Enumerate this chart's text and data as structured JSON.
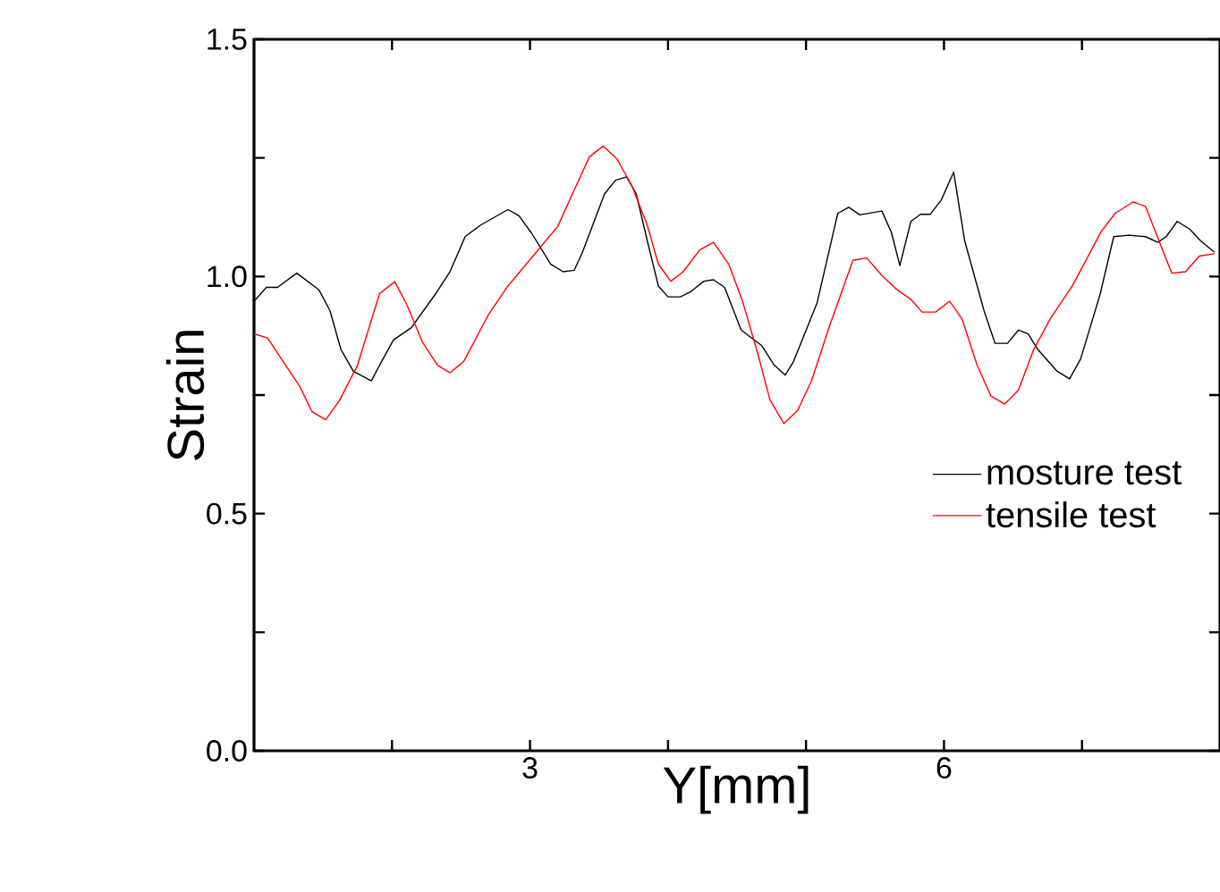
{
  "chart_data": {
    "type": "line",
    "xlabel": "Y[mm]",
    "ylabel": "Strain",
    "xlim": [
      1,
      8
    ],
    "ylim": [
      0,
      1.5
    ],
    "xticks": [
      {
        "value": 2,
        "label": null
      },
      3,
      {
        "value": 4,
        "label": null
      },
      {
        "value": 5,
        "label": null
      },
      6,
      {
        "value": 7,
        "label": null
      }
    ],
    "yticks": [
      {
        "value": 0,
        "label": "0.0"
      },
      {
        "value": 0.25,
        "label": null
      },
      0.5,
      {
        "value": 0.75,
        "label": null
      },
      {
        "value": 1,
        "label": "1.0"
      },
      {
        "value": 1.25,
        "label": null
      },
      1.5
    ],
    "legend": "right",
    "series": [
      {
        "name": "mosture test",
        "color": "#000000",
        "x": [
          1.0,
          1.09,
          1.17,
          1.31,
          1.47,
          1.55,
          1.63,
          1.72,
          1.85,
          1.91,
          2.01,
          2.14,
          2.31,
          2.42,
          2.53,
          2.64,
          2.84,
          2.92,
          3.01,
          3.15,
          3.24,
          3.32,
          3.38,
          3.54,
          3.62,
          3.7,
          3.77,
          3.85,
          3.93,
          4.0,
          4.09,
          4.17,
          4.26,
          4.33,
          4.41,
          4.53,
          4.68,
          4.77,
          4.85,
          4.91,
          5.08,
          5.23,
          5.31,
          5.39,
          5.55,
          5.62,
          5.68,
          5.76,
          5.83,
          5.9,
          5.98,
          6.07,
          6.15,
          6.29,
          6.37,
          6.46,
          6.54,
          6.61,
          6.68,
          6.82,
          6.91,
          6.99,
          7.13,
          7.23,
          7.34,
          7.46,
          7.55,
          7.61,
          7.69,
          7.78,
          7.86,
          7.96
        ],
        "values": [
          0.948,
          0.977,
          0.977,
          1.007,
          0.972,
          0.928,
          0.846,
          0.8,
          0.78,
          0.813,
          0.866,
          0.892,
          0.961,
          1.01,
          1.084,
          1.108,
          1.141,
          1.128,
          1.092,
          1.026,
          1.01,
          1.013,
          1.051,
          1.174,
          1.203,
          1.21,
          1.174,
          1.075,
          0.98,
          0.957,
          0.957,
          0.969,
          0.99,
          0.993,
          0.977,
          0.887,
          0.854,
          0.813,
          0.792,
          0.821,
          0.944,
          1.133,
          1.146,
          1.13,
          1.138,
          1.092,
          1.023,
          1.116,
          1.131,
          1.131,
          1.161,
          1.22,
          1.075,
          0.928,
          0.859,
          0.859,
          0.887,
          0.879,
          0.846,
          0.8,
          0.784,
          0.826,
          0.961,
          1.084,
          1.087,
          1.084,
          1.072,
          1.084,
          1.116,
          1.1,
          1.075,
          1.051
        ]
      },
      {
        "name": "tensile test",
        "color": "#ff0000",
        "x": [
          1.0,
          1.1,
          1.21,
          1.33,
          1.42,
          1.52,
          1.62,
          1.75,
          1.91,
          2.02,
          2.11,
          2.22,
          2.33,
          2.42,
          2.52,
          2.7,
          2.84,
          3.2,
          3.32,
          3.43,
          3.53,
          3.63,
          3.74,
          3.85,
          3.93,
          4.02,
          4.11,
          4.23,
          4.33,
          4.44,
          4.54,
          4.65,
          4.74,
          4.84,
          4.94,
          5.04,
          5.17,
          5.34,
          5.44,
          5.55,
          5.66,
          5.76,
          5.84,
          5.94,
          6.04,
          6.13,
          6.24,
          6.34,
          6.44,
          6.54,
          6.65,
          6.77,
          6.93,
          7.14,
          7.24,
          7.37,
          7.46,
          7.65,
          7.75,
          7.85,
          7.96
        ],
        "values": [
          0.879,
          0.87,
          0.821,
          0.769,
          0.715,
          0.698,
          0.739,
          0.813,
          0.964,
          0.989,
          0.939,
          0.862,
          0.813,
          0.797,
          0.821,
          0.92,
          0.98,
          1.105,
          1.182,
          1.252,
          1.275,
          1.248,
          1.19,
          1.108,
          1.026,
          0.99,
          1.01,
          1.056,
          1.072,
          1.026,
          0.948,
          0.838,
          0.739,
          0.69,
          0.718,
          0.78,
          0.895,
          1.034,
          1.039,
          1.002,
          0.972,
          0.952,
          0.925,
          0.925,
          0.948,
          0.911,
          0.813,
          0.748,
          0.731,
          0.761,
          0.846,
          0.911,
          0.98,
          1.095,
          1.133,
          1.157,
          1.148,
          1.007,
          1.01,
          1.043,
          1.048
        ]
      }
    ]
  }
}
